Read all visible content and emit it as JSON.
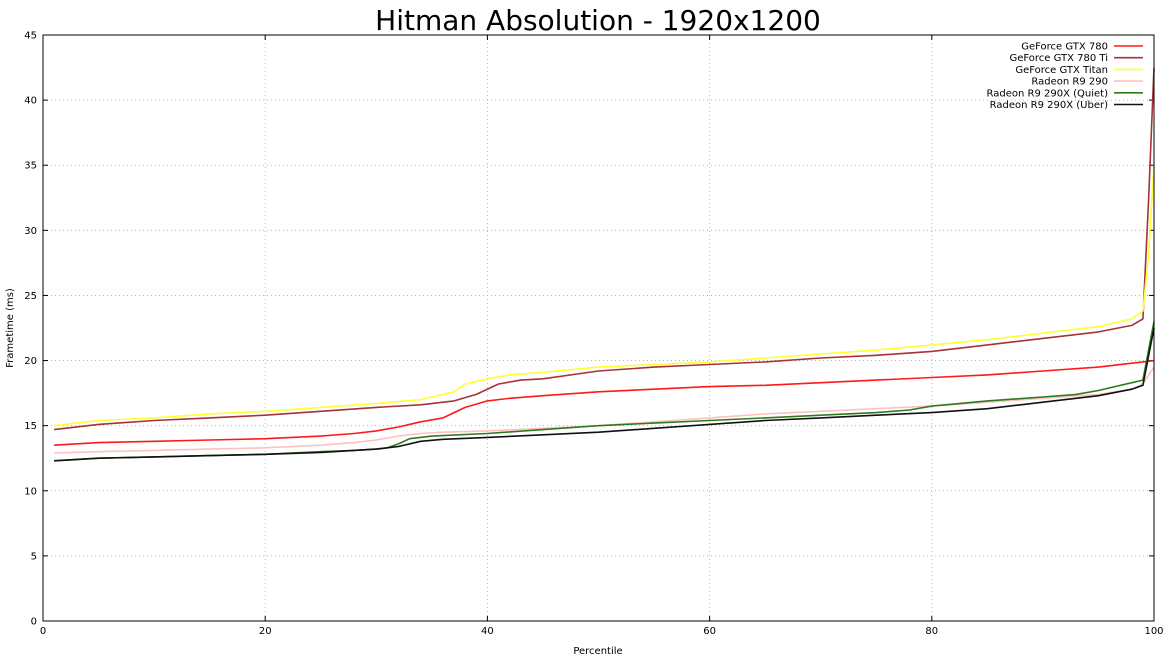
{
  "chart_data": {
    "type": "line",
    "title": "Hitman Absolution - 1920x1200",
    "xlabel": "Percentile",
    "ylabel": "Frametime (ms)",
    "xlim": [
      0,
      100
    ],
    "ylim": [
      0,
      45
    ],
    "xticks": [
      0,
      20,
      40,
      60,
      80,
      100
    ],
    "yticks": [
      0,
      5,
      10,
      15,
      20,
      25,
      30,
      35,
      40,
      45
    ],
    "grid": true,
    "legend_position": "top-right",
    "series": [
      {
        "name": "GeForce GTX 780",
        "color": "#ff1a1a",
        "points": [
          [
            1,
            13.5
          ],
          [
            5,
            13.7
          ],
          [
            10,
            13.8
          ],
          [
            15,
            13.9
          ],
          [
            20,
            14.0
          ],
          [
            25,
            14.2
          ],
          [
            28,
            14.4
          ],
          [
            30,
            14.6
          ],
          [
            32,
            14.9
          ],
          [
            34,
            15.3
          ],
          [
            36,
            15.6
          ],
          [
            37,
            16.0
          ],
          [
            38,
            16.4
          ],
          [
            40,
            16.9
          ],
          [
            42,
            17.1
          ],
          [
            45,
            17.3
          ],
          [
            50,
            17.6
          ],
          [
            55,
            17.8
          ],
          [
            60,
            18.0
          ],
          [
            65,
            18.1
          ],
          [
            70,
            18.3
          ],
          [
            75,
            18.5
          ],
          [
            80,
            18.7
          ],
          [
            85,
            18.9
          ],
          [
            90,
            19.2
          ],
          [
            95,
            19.5
          ],
          [
            98,
            19.8
          ],
          [
            100,
            20.0
          ]
        ]
      },
      {
        "name": "GeForce GTX 780 Ti",
        "color": "#a83238",
        "points": [
          [
            1,
            14.7
          ],
          [
            5,
            15.1
          ],
          [
            10,
            15.4
          ],
          [
            15,
            15.6
          ],
          [
            20,
            15.8
          ],
          [
            25,
            16.1
          ],
          [
            30,
            16.4
          ],
          [
            34,
            16.6
          ],
          [
            37,
            16.9
          ],
          [
            39,
            17.4
          ],
          [
            41,
            18.2
          ],
          [
            43,
            18.5
          ],
          [
            45,
            18.6
          ],
          [
            50,
            19.2
          ],
          [
            55,
            19.5
          ],
          [
            60,
            19.7
          ],
          [
            65,
            19.9
          ],
          [
            70,
            20.2
          ],
          [
            75,
            20.4
          ],
          [
            80,
            20.7
          ],
          [
            85,
            21.2
          ],
          [
            90,
            21.7
          ],
          [
            95,
            22.2
          ],
          [
            98,
            22.7
          ],
          [
            99,
            23.2
          ],
          [
            99.5,
            32.0
          ],
          [
            100,
            42.5
          ]
        ]
      },
      {
        "name": "GeForce GTX Titan",
        "color": "#ffff33",
        "points": [
          [
            1,
            15.0
          ],
          [
            5,
            15.4
          ],
          [
            10,
            15.6
          ],
          [
            15,
            15.9
          ],
          [
            20,
            16.1
          ],
          [
            25,
            16.4
          ],
          [
            30,
            16.7
          ],
          [
            34,
            17.0
          ],
          [
            37,
            17.6
          ],
          [
            38,
            18.2
          ],
          [
            40,
            18.6
          ],
          [
            42,
            18.9
          ],
          [
            45,
            19.1
          ],
          [
            50,
            19.5
          ],
          [
            55,
            19.7
          ],
          [
            60,
            19.9
          ],
          [
            65,
            20.2
          ],
          [
            70,
            20.5
          ],
          [
            75,
            20.8
          ],
          [
            80,
            21.2
          ],
          [
            85,
            21.6
          ],
          [
            90,
            22.1
          ],
          [
            95,
            22.6
          ],
          [
            98,
            23.2
          ],
          [
            99,
            23.8
          ],
          [
            99.5,
            28.0
          ],
          [
            100,
            35.0
          ]
        ]
      },
      {
        "name": "Radeon R9 290",
        "color": "#ffc0c0",
        "points": [
          [
            1,
            12.9
          ],
          [
            5,
            13.0
          ],
          [
            10,
            13.1
          ],
          [
            15,
            13.2
          ],
          [
            20,
            13.3
          ],
          [
            25,
            13.5
          ],
          [
            28,
            13.7
          ],
          [
            30,
            13.9
          ],
          [
            32,
            14.2
          ],
          [
            34,
            14.4
          ],
          [
            36,
            14.5
          ],
          [
            40,
            14.6
          ],
          [
            45,
            14.8
          ],
          [
            50,
            15.0
          ],
          [
            55,
            15.3
          ],
          [
            60,
            15.6
          ],
          [
            65,
            15.9
          ],
          [
            70,
            16.1
          ],
          [
            75,
            16.3
          ],
          [
            80,
            16.5
          ],
          [
            85,
            16.8
          ],
          [
            90,
            17.1
          ],
          [
            95,
            17.4
          ],
          [
            98,
            17.8
          ],
          [
            99,
            18.2
          ],
          [
            100,
            19.5
          ]
        ]
      },
      {
        "name": "Radeon R9 290X (Quiet)",
        "color": "#2f7a1e",
        "points": [
          [
            1,
            12.3
          ],
          [
            5,
            12.5
          ],
          [
            10,
            12.6
          ],
          [
            15,
            12.7
          ],
          [
            20,
            12.8
          ],
          [
            25,
            13.0
          ],
          [
            28,
            13.1
          ],
          [
            30,
            13.2
          ],
          [
            31,
            13.3
          ],
          [
            32,
            13.6
          ],
          [
            33,
            14.0
          ],
          [
            35,
            14.2
          ],
          [
            40,
            14.4
          ],
          [
            45,
            14.7
          ],
          [
            50,
            15.0
          ],
          [
            55,
            15.2
          ],
          [
            60,
            15.4
          ],
          [
            65,
            15.6
          ],
          [
            70,
            15.8
          ],
          [
            75,
            16.0
          ],
          [
            78,
            16.2
          ],
          [
            80,
            16.5
          ],
          [
            85,
            16.9
          ],
          [
            90,
            17.2
          ],
          [
            93,
            17.4
          ],
          [
            95,
            17.7
          ],
          [
            96,
            17.9
          ],
          [
            98,
            18.3
          ],
          [
            99,
            18.5
          ],
          [
            100,
            23.0
          ]
        ]
      },
      {
        "name": "Radeon R9 290X (Uber)",
        "color": "#111111",
        "points": [
          [
            1,
            12.3
          ],
          [
            5,
            12.5
          ],
          [
            10,
            12.6
          ],
          [
            15,
            12.7
          ],
          [
            20,
            12.8
          ],
          [
            25,
            12.95
          ],
          [
            28,
            13.1
          ],
          [
            30,
            13.2
          ],
          [
            32,
            13.4
          ],
          [
            34,
            13.8
          ],
          [
            36,
            13.95
          ],
          [
            40,
            14.1
          ],
          [
            45,
            14.3
          ],
          [
            50,
            14.5
          ],
          [
            55,
            14.8
          ],
          [
            60,
            15.1
          ],
          [
            65,
            15.4
          ],
          [
            70,
            15.6
          ],
          [
            75,
            15.8
          ],
          [
            80,
            16.0
          ],
          [
            85,
            16.3
          ],
          [
            88,
            16.6
          ],
          [
            90,
            16.8
          ],
          [
            95,
            17.3
          ],
          [
            98,
            17.8
          ],
          [
            99,
            18.1
          ],
          [
            100,
            22.5
          ]
        ]
      }
    ]
  }
}
